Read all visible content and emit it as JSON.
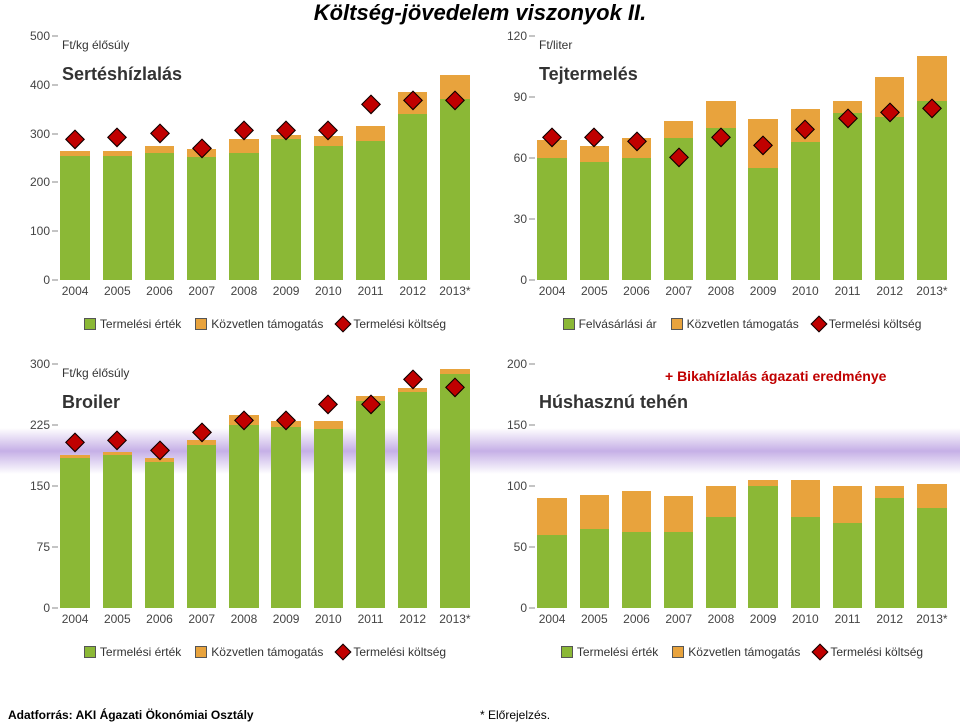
{
  "title": "Költség-jövedelem viszonyok II.",
  "years": [
    "2004",
    "2005",
    "2006",
    "2007",
    "2008",
    "2009",
    "2010",
    "2011",
    "2012",
    "2013*"
  ],
  "colors": {
    "green": "#8bb836",
    "orange": "#e8a33d",
    "marker_fill": "#c00000",
    "marker_edge": "#000000",
    "axis": "#888888",
    "text": "#444444"
  },
  "charts": {
    "q1": {
      "unit_label": "Ft/kg élősúly",
      "subtitle": "Sertéshízlalás",
      "ymax": 500,
      "ytick_step": 100,
      "series_green": [
        255,
        255,
        260,
        253,
        260,
        288,
        275,
        285,
        340,
        370
      ],
      "series_orange": [
        10,
        10,
        14,
        16,
        30,
        10,
        20,
        30,
        45,
        50
      ],
      "series_marker": [
        278,
        283,
        290,
        260,
        298,
        298,
        298,
        350,
        358,
        358
      ],
      "legend": [
        {
          "type": "sq",
          "color": "#8bb836",
          "label": "Termelési érték"
        },
        {
          "type": "sq",
          "color": "#e8a33d",
          "label": "Közvetlen támogatás"
        },
        {
          "type": "dm",
          "color": "#c00000",
          "label": "Termelési költség"
        }
      ]
    },
    "q2": {
      "unit_label": "Ft/liter",
      "subtitle": "Tejtermelés",
      "ymax": 120,
      "ytick_step": 30,
      "series_green": [
        60,
        58,
        60,
        70,
        75,
        55,
        68,
        82,
        80,
        88
      ],
      "series_orange": [
        9,
        8,
        10,
        8,
        13,
        24,
        16,
        6,
        20,
        22
      ],
      "series_marker": [
        68,
        68,
        66,
        58,
        68,
        64,
        72,
        77,
        80,
        82
      ],
      "legend": [
        {
          "type": "sq",
          "color": "#8bb836",
          "label": "Felvásárlási ár"
        },
        {
          "type": "sq",
          "color": "#e8a33d",
          "label": "Közvetlen támogatás"
        },
        {
          "type": "dm",
          "color": "#c00000",
          "label": "Termelési költség"
        }
      ]
    },
    "q3": {
      "unit_label": "Ft/kg élősúly",
      "subtitle": "Broiler",
      "ymax": 300,
      "ytick_step": 75,
      "series_green": [
        184,
        188,
        180,
        200,
        225,
        222,
        220,
        255,
        265,
        288
      ],
      "series_orange": [
        4,
        4,
        4,
        6,
        12,
        8,
        10,
        6,
        6,
        6
      ],
      "series_marker": [
        198,
        200,
        188,
        210,
        225,
        225,
        245,
        245,
        275,
        265
      ],
      "legend": [
        {
          "type": "sq",
          "color": "#8bb836",
          "label": "Termelési érték"
        },
        {
          "type": "sq",
          "color": "#e8a33d",
          "label": "Közvetlen támogatás"
        },
        {
          "type": "dm",
          "color": "#c00000",
          "label": "Termelési költség"
        }
      ]
    },
    "q4": {
      "unit_label": "",
      "subtitle": "Húshasznú tehén",
      "extra_label": "+ Bikahízlalás ágazati eredménye",
      "ymax": 200,
      "ytick_step": 50,
      "series_green": [
        60,
        65,
        62,
        62,
        75,
        100,
        75,
        70,
        90,
        82
      ],
      "series_orange": [
        30,
        28,
        34,
        30,
        25,
        5,
        30,
        30,
        10,
        20
      ],
      "series_marker": [],
      "legend": [
        {
          "type": "sq",
          "color": "#8bb836",
          "label": "Termelési érték"
        },
        {
          "type": "sq",
          "color": "#e8a33d",
          "label": "Közvetlen támogatás"
        },
        {
          "type": "dm",
          "color": "#c00000",
          "label": "Termelési költség"
        }
      ]
    }
  },
  "footer_left": "Adatforrás: AKI Ágazati Ökonómiai Osztály",
  "footer_center": "* Előrejelzés."
}
